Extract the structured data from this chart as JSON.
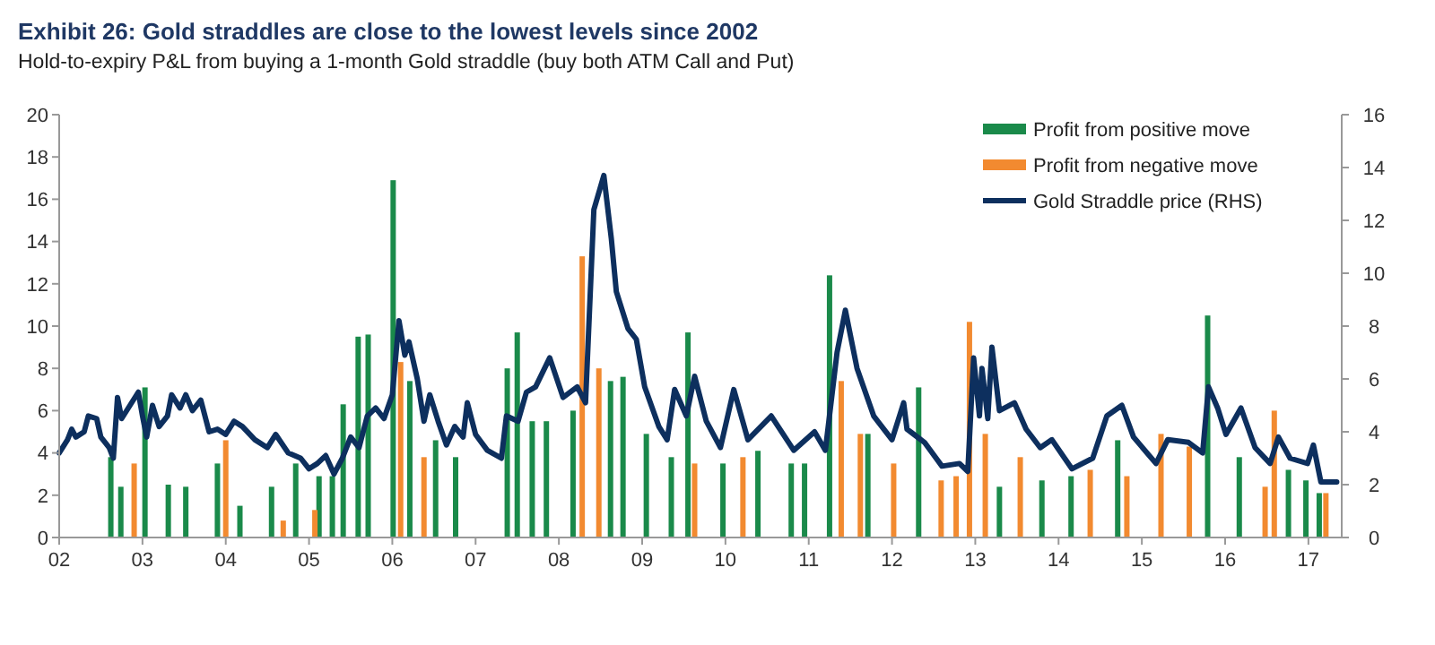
{
  "chart_data": {
    "type": "bar",
    "title": "Exhibit 26: Gold straddles are close to the lowest levels since 2002",
    "subtitle": "Hold-to-expiry P&L from buying a 1-month Gold straddle (buy both ATM Call and Put)",
    "xlim": [
      2002,
      2017.4
    ],
    "xticks": [
      {
        "value": 2002,
        "label": "02"
      },
      {
        "value": 2003,
        "label": "03"
      },
      {
        "value": 2004,
        "label": "04"
      },
      {
        "value": 2005,
        "label": "05"
      },
      {
        "value": 2006,
        "label": "06"
      },
      {
        "value": 2007,
        "label": "07"
      },
      {
        "value": 2008,
        "label": "08"
      },
      {
        "value": 2009,
        "label": "09"
      },
      {
        "value": 2010,
        "label": "10"
      },
      {
        "value": 2011,
        "label": "11"
      },
      {
        "value": 2012,
        "label": "12"
      },
      {
        "value": 2013,
        "label": "13"
      },
      {
        "value": 2014,
        "label": "14"
      },
      {
        "value": 2015,
        "label": "15"
      },
      {
        "value": 2016,
        "label": "16"
      },
      {
        "value": 2017,
        "label": "17"
      }
    ],
    "ylim": [
      0,
      20
    ],
    "yticks": [
      0,
      2,
      4,
      6,
      8,
      10,
      12,
      14,
      16,
      18,
      20
    ],
    "y2lim": [
      0,
      16
    ],
    "y2ticks": [
      0,
      2,
      4,
      6,
      8,
      10,
      12,
      14,
      16
    ],
    "grid": false,
    "legend": "top right",
    "series": [
      {
        "name": "Profit from positive move",
        "color": "#1a8a4a",
        "x": [
          2002.62,
          2002.74,
          2003.03,
          2003.31,
          2003.52,
          2003.9,
          2004.17,
          2004.55,
          2004.84,
          2005.12,
          2005.28,
          2005.41,
          2005.59,
          2005.71,
          2006.01,
          2006.21,
          2006.52,
          2006.76,
          2007.38,
          2007.5,
          2007.68,
          2007.85,
          2008.17,
          2008.62,
          2008.77,
          2009.05,
          2009.35,
          2009.55,
          2009.97,
          2010.39,
          2010.79,
          2010.95,
          2011.25,
          2011.71,
          2012.32,
          2013.29,
          2013.8,
          2014.15,
          2014.71,
          2015.79,
          2016.17,
          2016.76,
          2016.97,
          2017.13
        ],
        "values": [
          3.8,
          2.4,
          7.1,
          2.5,
          2.4,
          3.5,
          1.5,
          2.4,
          3.5,
          2.9,
          2.9,
          6.3,
          9.5,
          9.6,
          16.9,
          7.4,
          4.6,
          3.8,
          8.0,
          9.7,
          5.5,
          5.5,
          6.0,
          7.4,
          7.6,
          4.9,
          3.8,
          9.7,
          3.5,
          4.1,
          3.5,
          3.5,
          12.4,
          4.9,
          7.1,
          2.4,
          2.7,
          2.9,
          4.6,
          10.5,
          3.8,
          3.2,
          2.7,
          2.1
        ]
      },
      {
        "name": "Profit from negative move",
        "color": "#f28a30",
        "x": [
          2002.9,
          2004.0,
          2004.69,
          2005.07,
          2006.1,
          2006.38,
          2008.28,
          2008.48,
          2009.63,
          2010.21,
          2011.39,
          2011.62,
          2012.02,
          2012.59,
          2012.77,
          2012.93,
          2013.12,
          2013.54,
          2014.38,
          2014.82,
          2015.23,
          2015.57,
          2016.48,
          2016.59,
          2017.21
        ],
        "values": [
          3.5,
          4.6,
          0.8,
          1.3,
          8.3,
          3.8,
          13.3,
          8.0,
          3.5,
          3.8,
          7.4,
          4.9,
          3.5,
          2.7,
          2.9,
          10.2,
          4.9,
          3.8,
          3.2,
          2.9,
          4.9,
          4.3,
          2.4,
          6.0,
          2.1
        ]
      },
      {
        "name": "Gold Straddle price (RHS)",
        "type": "line",
        "axis": "y2",
        "color": "#0d2f5e",
        "x": [
          2002.0,
          2002.1,
          2002.15,
          2002.2,
          2002.3,
          2002.35,
          2002.45,
          2002.5,
          2002.6,
          2002.65,
          2002.7,
          2002.75,
          2002.85,
          2002.95,
          2003.0,
          2003.05,
          2003.12,
          2003.2,
          2003.3,
          2003.35,
          2003.45,
          2003.52,
          2003.6,
          2003.7,
          2003.8,
          2003.9,
          2004.0,
          2004.1,
          2004.2,
          2004.35,
          2004.5,
          2004.6,
          2004.75,
          2004.9,
          2005.0,
          2005.1,
          2005.2,
          2005.3,
          2005.4,
          2005.5,
          2005.6,
          2005.7,
          2005.8,
          2005.9,
          2006.0,
          2006.08,
          2006.15,
          2006.2,
          2006.3,
          2006.38,
          2006.45,
          2006.55,
          2006.65,
          2006.75,
          2006.85,
          2006.9,
          2007.0,
          2007.14,
          2007.31,
          2007.37,
          2007.51,
          2007.61,
          2007.72,
          2007.89,
          2008.05,
          2008.22,
          2008.32,
          2008.42,
          2008.54,
          2008.63,
          2008.69,
          2008.83,
          2008.93,
          2009.03,
          2009.2,
          2009.3,
          2009.39,
          2009.53,
          2009.63,
          2009.77,
          2009.94,
          2010.1,
          2010.27,
          2010.55,
          2010.82,
          2011.07,
          2011.2,
          2011.34,
          2011.44,
          2011.58,
          2011.78,
          2012.0,
          2012.14,
          2012.18,
          2012.39,
          2012.6,
          2012.81,
          2012.91,
          2012.98,
          2013.05,
          2013.08,
          2013.15,
          2013.2,
          2013.29,
          2013.47,
          2013.61,
          2013.78,
          2013.92,
          2014.16,
          2014.41,
          2014.58,
          2014.76,
          2014.9,
          2015.17,
          2015.31,
          2015.56,
          2015.73,
          2015.8,
          2015.91,
          2016.01,
          2016.19,
          2016.36,
          2016.54,
          2016.64,
          2016.78,
          2016.99,
          2017.06,
          2017.15,
          2017.34
        ],
        "values": [
          3.2,
          3.7,
          4.1,
          3.8,
          4.0,
          4.6,
          4.5,
          3.8,
          3.4,
          3.0,
          5.3,
          4.5,
          5.0,
          5.5,
          4.6,
          3.8,
          5.0,
          4.2,
          4.6,
          5.4,
          4.9,
          5.4,
          4.8,
          5.2,
          4.0,
          4.1,
          3.9,
          4.4,
          4.2,
          3.7,
          3.4,
          3.9,
          3.2,
          3.0,
          2.6,
          2.8,
          3.1,
          2.4,
          3.0,
          3.8,
          3.4,
          4.6,
          4.9,
          4.5,
          5.4,
          8.2,
          6.9,
          7.4,
          6.0,
          4.4,
          5.4,
          4.4,
          3.5,
          4.2,
          3.8,
          5.1,
          3.9,
          3.3,
          3.0,
          4.6,
          4.4,
          5.5,
          5.7,
          6.8,
          5.3,
          5.7,
          5.1,
          12.4,
          13.7,
          11.3,
          9.3,
          7.9,
          7.5,
          5.7,
          4.2,
          3.7,
          5.6,
          4.6,
          6.1,
          4.4,
          3.4,
          5.6,
          3.7,
          4.6,
          3.3,
          4.0,
          3.3,
          7.0,
          8.6,
          6.4,
          4.6,
          3.7,
          5.1,
          4.1,
          3.6,
          2.7,
          2.8,
          2.5,
          6.8,
          4.6,
          6.4,
          4.5,
          7.2,
          4.8,
          5.1,
          4.1,
          3.4,
          3.7,
          2.6,
          3.0,
          4.6,
          5.0,
          3.8,
          2.8,
          3.7,
          3.6,
          3.2,
          5.7,
          4.9,
          3.9,
          4.9,
          3.4,
          2.8,
          3.8,
          3.0,
          2.8,
          3.5,
          2.1,
          2.1
        ]
      }
    ]
  }
}
